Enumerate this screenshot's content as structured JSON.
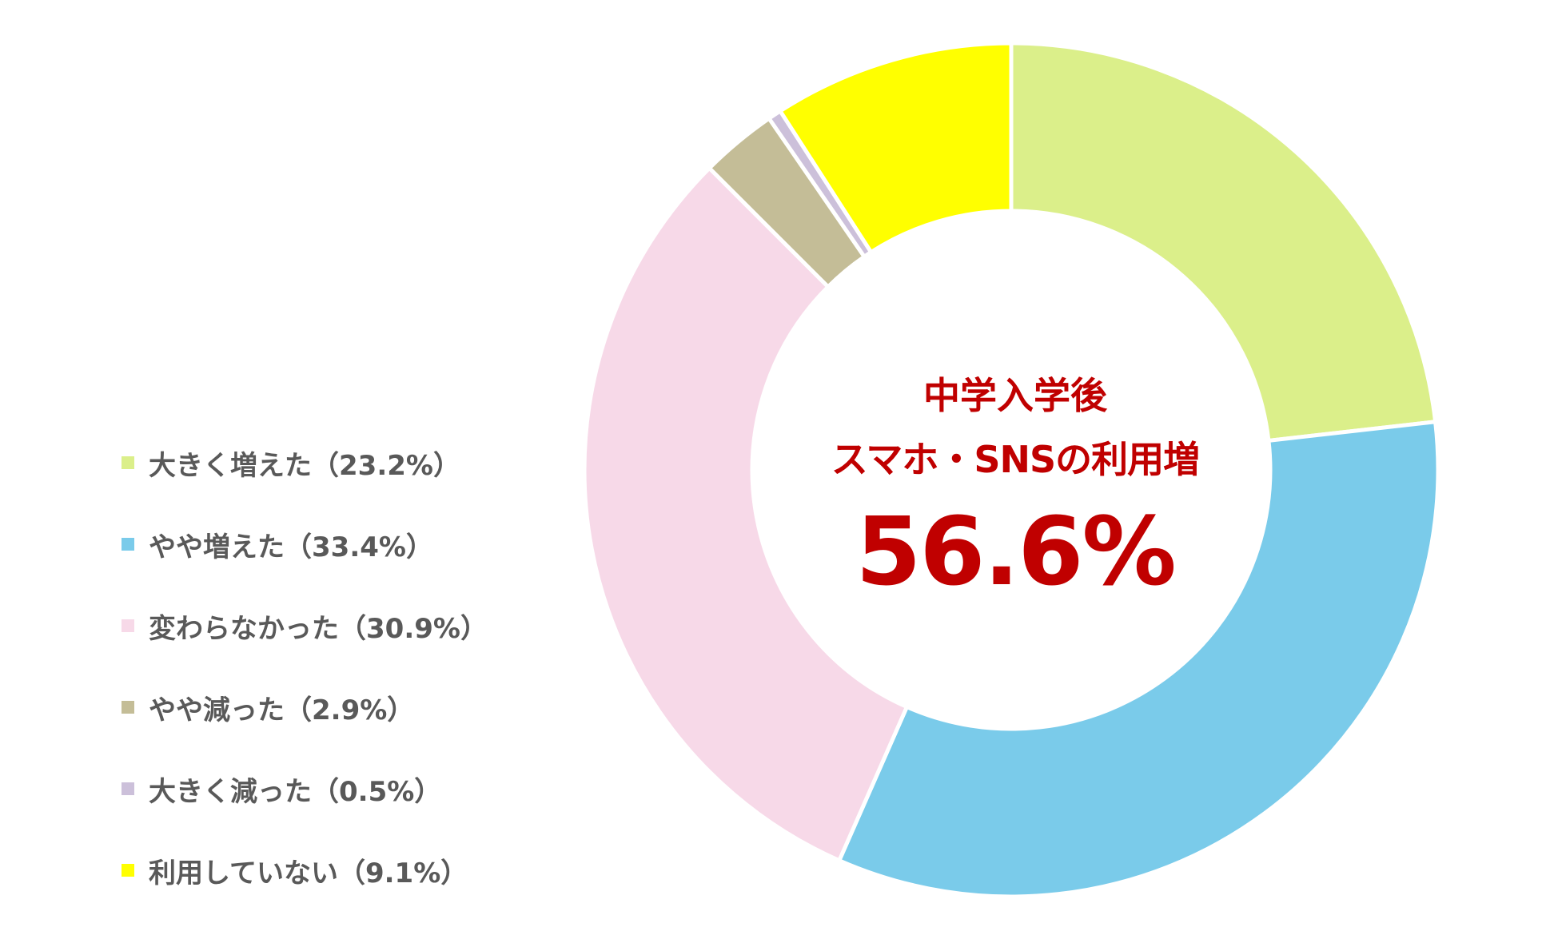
{
  "chart_data": {
    "type": "pie",
    "subtype": "donut",
    "categories": [
      "大きく増えた",
      "やや増えた",
      "変わらなかった",
      "やや減った",
      "大きく減った",
      "利用していない"
    ],
    "values": [
      23.2,
      33.4,
      30.9,
      2.9,
      0.5,
      9.1
    ],
    "unit": "%",
    "colors": [
      "#dbef8a",
      "#7acbea",
      "#f7d9e8",
      "#c4bd97",
      "#ccc0da",
      "#ffff00"
    ],
    "legend_position": "left",
    "legend": [
      {
        "label": "大きく増えた（23.2%）"
      },
      {
        "label": "やや増えた（33.4%）"
      },
      {
        "label": "変わらなかった（30.9%）"
      },
      {
        "label": "やや減った（2.9%）"
      },
      {
        "label": "大きく減った（0.5%）"
      },
      {
        "label": "利用していない（9.1%）"
      }
    ],
    "center_text": {
      "line1": "中学入学後",
      "line2": "スマホ・SNSの利用増",
      "value": "56.6%",
      "color": "#c00000"
    }
  }
}
